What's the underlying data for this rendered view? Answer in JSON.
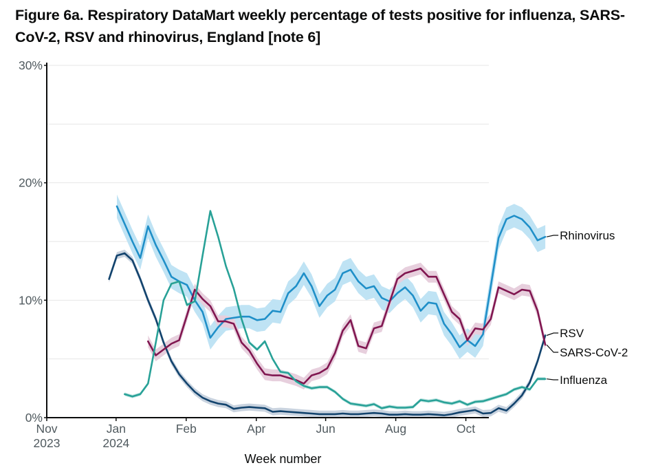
{
  "chart_data": {
    "type": "line",
    "title": "Figure 6a. Respiratory DataMart weekly percentage of tests positive for influenza, SARS-CoV-2, RSV and rhinovirus, England [note 6]",
    "xlabel": "Week number",
    "ylabel": "",
    "ylim": [
      0,
      30
    ],
    "yticks": [
      0,
      10,
      20,
      30
    ],
    "ytick_labels": [
      "0%",
      "10%",
      "20%",
      "30%"
    ],
    "weeks": 65,
    "xticks": [
      {
        "week": 0,
        "label": "Nov",
        "sublabel": "2023"
      },
      {
        "week": 8.9,
        "label": "Jan",
        "sublabel": "2024"
      },
      {
        "week": 17.9,
        "label": "Feb",
        "sublabel": ""
      },
      {
        "week": 26.9,
        "label": "Apr",
        "sublabel": ""
      },
      {
        "week": 35.8,
        "label": "Jun",
        "sublabel": ""
      },
      {
        "week": 44.8,
        "label": "Aug",
        "sublabel": ""
      },
      {
        "week": 53.8,
        "label": "Oct",
        "sublabel": ""
      }
    ],
    "grid": true,
    "legend": "end-labels",
    "series": [
      {
        "name": "Rhinovirus",
        "color": "#1f8fc8",
        "band_color": "#bfe3f4",
        "band_halfwidth": 1.0,
        "values": [
          18.0,
          16.5,
          15.0,
          13.6,
          16.3,
          14.7,
          13.4,
          12.0,
          11.6,
          11.3,
          10.0,
          9.0,
          6.8,
          7.7,
          8.4,
          8.5,
          8.6,
          8.6,
          8.3,
          8.4,
          9.1,
          9.0,
          10.6,
          11.2,
          12.3,
          11.2,
          9.5,
          10.4,
          10.9,
          12.3,
          12.6,
          11.6,
          11.0,
          11.2,
          10.2,
          9.9,
          10.6,
          11.1,
          10.4,
          9.1,
          9.8,
          9.7,
          8.0,
          7.1,
          6.0,
          6.6,
          6.1,
          7.1,
          11.2,
          15.3,
          16.9,
          17.2,
          16.9,
          16.2,
          15.1,
          15.4
        ]
      },
      {
        "name": "RSV",
        "color": "#12436d",
        "band_color": "#c9d3df",
        "band_halfwidth": 0.3,
        "values": [
          11.8,
          13.8,
          14.0,
          13.4,
          11.8,
          10.0,
          8.4,
          6.4,
          4.8,
          3.7,
          2.9,
          2.2,
          1.7,
          1.4,
          1.2,
          1.1,
          0.75,
          0.85,
          0.9,
          0.85,
          0.8,
          0.5,
          0.55,
          0.5,
          0.45,
          0.4,
          0.35,
          0.3,
          0.3,
          0.3,
          0.35,
          0.3,
          0.3,
          0.35,
          0.4,
          0.35,
          0.25,
          0.25,
          0.3,
          0.25,
          0.25,
          0.3,
          0.25,
          0.2,
          0.3,
          0.45,
          0.55,
          0.65,
          0.35,
          0.4,
          0.8,
          0.6,
          1.2,
          1.9,
          3.0,
          4.8,
          7.0
        ]
      },
      {
        "name": "SARS-CoV-2",
        "color": "#801650",
        "band_color": "#e7cfdd",
        "band_halfwidth": 0.5,
        "values": [
          6.5,
          5.3,
          5.8,
          6.3,
          6.6,
          8.7,
          10.9,
          10.1,
          9.5,
          8.2,
          8.2,
          8.0,
          6.4,
          5.7,
          4.6,
          3.7,
          3.6,
          3.6,
          3.4,
          3.2,
          2.9,
          3.6,
          3.8,
          4.2,
          5.5,
          7.4,
          8.3,
          6.1,
          5.9,
          7.6,
          7.8,
          9.8,
          11.8,
          12.3,
          12.5,
          12.7,
          12.0,
          12.0,
          10.5,
          9.0,
          8.4,
          6.6,
          7.6,
          7.5,
          8.4,
          11.1,
          10.8,
          10.5,
          10.9,
          10.8,
          9.1,
          6.2
        ]
      },
      {
        "name": "Influenza",
        "color": "#28a197",
        "band_color": "#c3e6e3",
        "band_halfwidth": 0.15,
        "values": [
          2.0,
          1.8,
          2.0,
          2.9,
          6.4,
          10.0,
          11.4,
          11.6,
          9.6,
          9.9,
          13.8,
          17.6,
          15.4,
          12.9,
          11.0,
          8.4,
          6.4,
          5.8,
          6.5,
          5.0,
          3.9,
          3.8,
          3.1,
          2.7,
          2.5,
          2.6,
          2.6,
          2.2,
          1.6,
          1.2,
          1.1,
          1.0,
          1.15,
          0.8,
          0.95,
          0.85,
          0.85,
          0.9,
          1.5,
          1.4,
          1.5,
          1.3,
          1.2,
          1.4,
          1.1,
          1.35,
          1.4,
          1.6,
          1.8,
          2.0,
          2.4,
          2.6,
          2.4,
          3.3,
          3.3
        ]
      }
    ],
    "end_labels": [
      "Rhinovirus",
      "RSV",
      "SARS-CoV-2",
      "Influenza"
    ]
  }
}
